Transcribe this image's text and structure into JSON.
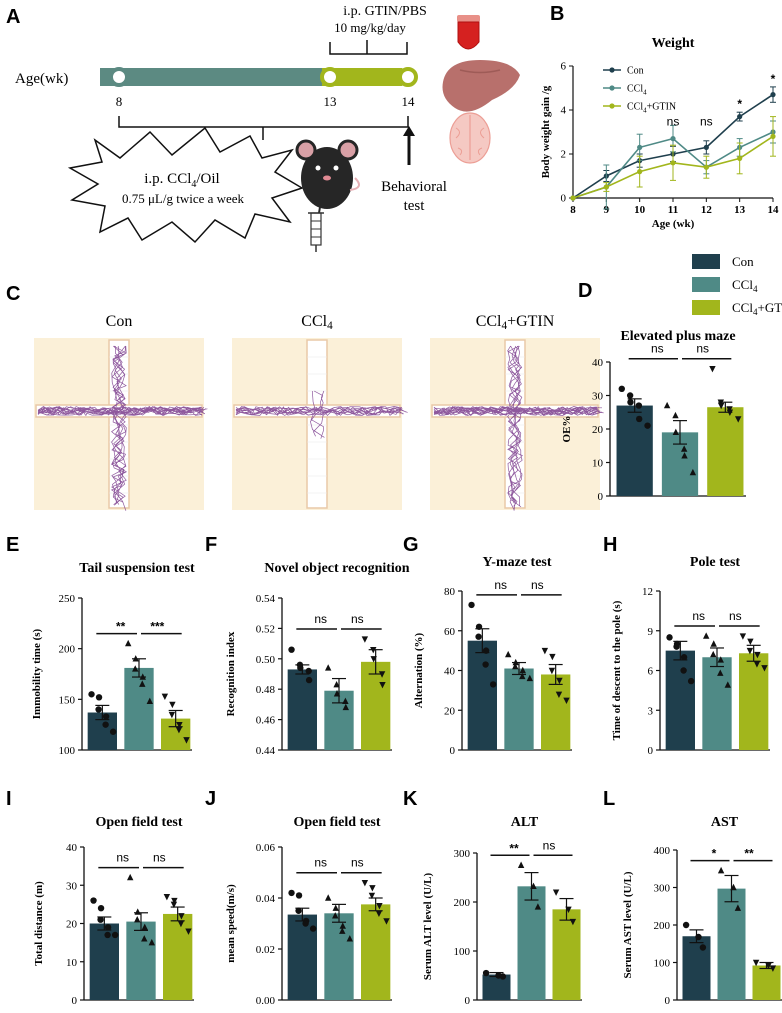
{
  "colors": {
    "con": "#1f3f4d",
    "ccl4": "#4f8a86",
    "gtin": "#a2b61c",
    "timeline_dark": "#5c8a82",
    "timeline_light": "#a2b61c",
    "maze_bg": "#fbf0d8",
    "maze_arm": "#e9c9a7",
    "track": "#7a3b8c"
  },
  "panel_letters": {
    "A": "A",
    "B": "B",
    "C": "C",
    "D": "D",
    "E": "E",
    "F": "F",
    "G": "G",
    "H": "H",
    "I": "I",
    "J": "J",
    "K": "K",
    "L": "L"
  },
  "panelA": {
    "axis_label": "Age(wk)",
    "ticks": [
      "8",
      "13",
      "14"
    ],
    "top_label": "i.p. GTIN/PBS",
    "top_dose": "10 mg/kg/day",
    "burst_line1": "i.p. CCl",
    "burst_sub": "4",
    "burst_line1_suffix": "/Oil",
    "burst_line2": "0.75 μL/g twice a week",
    "behav1": "Behavioral",
    "behav2": "test"
  },
  "legend": {
    "entries": [
      {
        "key": "con",
        "label": "Con",
        "sub": "",
        "suffix": ""
      },
      {
        "key": "ccl4",
        "label": "CCl",
        "sub": "4",
        "suffix": ""
      },
      {
        "key": "gtin",
        "label": "CCl",
        "sub": "4",
        "suffix": "+GTIN"
      }
    ]
  },
  "panelC": {
    "titles": [
      {
        "main": "Con",
        "sub": "",
        "suffix": ""
      },
      {
        "main": "CCl",
        "sub": "4",
        "suffix": ""
      },
      {
        "main": "CCl",
        "sub": "4",
        "suffix": "+GTIN"
      }
    ]
  },
  "chart_data": [
    {
      "id": "B",
      "type": "line",
      "title": "Weight",
      "xlabel": "Age (wk)",
      "ylabel": "Body weight gain /g",
      "x": [
        8,
        9,
        10,
        11,
        12,
        13,
        14
      ],
      "xlim": [
        8,
        14
      ],
      "ylim": [
        0,
        6
      ],
      "yticks": [
        0,
        2,
        4,
        6
      ],
      "series": [
        {
          "name": "Con",
          "color_key": "con",
          "values": [
            0,
            1.0,
            1.7,
            2.0,
            2.3,
            3.7,
            4.7
          ],
          "err": [
            0,
            0.25,
            0.3,
            0.35,
            0.3,
            0.2,
            0.35
          ]
        },
        {
          "name": "CCl4",
          "color_key": "ccl4",
          "values": [
            0,
            0.5,
            2.3,
            2.7,
            1.4,
            2.3,
            3.0
          ],
          "err": [
            0,
            1.0,
            0.6,
            0.6,
            0.3,
            0.4,
            0.5
          ]
        },
        {
          "name": "CCl4+GTIN",
          "color_key": "gtin",
          "values": [
            0,
            0.5,
            1.2,
            1.6,
            1.4,
            1.8,
            2.8
          ],
          "err": [
            0,
            0.2,
            0.7,
            0.8,
            0.5,
            0.7,
            0.9
          ]
        }
      ],
      "legend": [
        {
          "label": "Con",
          "sub": "",
          "suffix": ""
        },
        {
          "label": "CCl",
          "sub": "4",
          "suffix": ""
        },
        {
          "label": "CCl",
          "sub": "4",
          "suffix": "+GTIN"
        }
      ],
      "annotations": [
        {
          "x": 11,
          "text": "ns"
        },
        {
          "x": 12,
          "text": "ns"
        },
        {
          "x": 13,
          "text": "*"
        },
        {
          "x": 14,
          "text": "*"
        }
      ]
    },
    {
      "id": "D",
      "type": "bar",
      "title": "Elevated plus maze",
      "ylabel": "OE%",
      "ylim": [
        0,
        40
      ],
      "yticks": [
        0,
        10,
        20,
        30,
        40
      ],
      "values": [
        27,
        19,
        26.5
      ],
      "err": [
        2,
        3.5,
        1.5
      ],
      "points": [
        [
          32,
          30,
          28,
          27,
          23,
          21
        ],
        [
          27,
          24,
          19,
          14,
          12,
          7
        ],
        [
          38,
          28,
          27,
          26,
          25,
          23
        ]
      ],
      "sig": [
        {
          "from": 0,
          "to": 1,
          "text": "ns",
          "level": 0
        },
        {
          "from": 1,
          "to": 2,
          "text": "ns",
          "level": 0
        }
      ]
    },
    {
      "id": "E",
      "type": "bar",
      "title": "Tail suspension test",
      "ylabel": "Immobility time (s)",
      "ylim": [
        100,
        250
      ],
      "yticks": [
        100,
        150,
        200,
        250
      ],
      "values": [
        137,
        181,
        131
      ],
      "err": [
        7,
        9,
        8
      ],
      "points": [
        [
          155,
          152,
          140,
          133,
          125,
          118
        ],
        [
          205,
          190,
          180,
          172,
          165,
          148
        ],
        [
          153,
          145,
          135,
          125,
          120,
          110
        ]
      ],
      "sig": [
        {
          "from": 0,
          "to": 1,
          "text": "**",
          "level": 0
        },
        {
          "from": 1,
          "to": 2,
          "text": "***",
          "level": 0
        }
      ]
    },
    {
      "id": "F",
      "type": "bar",
      "title": "Novel object recognition",
      "ylabel": "Recognition index",
      "ylim": [
        0.44,
        0.54
      ],
      "yticks": [
        0.44,
        0.46,
        0.48,
        0.5,
        0.52,
        0.54
      ],
      "values": [
        0.493,
        0.479,
        0.498
      ],
      "err": [
        0.003,
        0.008,
        0.008
      ],
      "points": [
        [
          0.506,
          0.496,
          0.494,
          0.492,
          0.486
        ],
        [
          0.494,
          0.483,
          0.477,
          0.472,
          0.468
        ],
        [
          0.513,
          0.506,
          0.5,
          0.49,
          0.483
        ]
      ],
      "sig": [
        {
          "from": 0,
          "to": 1,
          "text": "ns",
          "level": 0
        },
        {
          "from": 1,
          "to": 2,
          "text": "ns",
          "level": 0
        }
      ]
    },
    {
      "id": "G",
      "type": "bar",
      "title": "Y-maze test",
      "ylabel": "Alternation (%)",
      "ylim": [
        0,
        80
      ],
      "yticks": [
        0,
        20,
        40,
        60,
        80
      ],
      "values": [
        55,
        41,
        38
      ],
      "err": [
        6,
        3,
        5
      ],
      "points": [
        [
          73,
          62,
          57,
          50,
          43,
          33
        ],
        [
          48,
          44,
          42,
          40,
          37,
          36
        ],
        [
          50,
          47,
          40,
          35,
          28,
          25
        ]
      ],
      "sig": [
        {
          "from": 0,
          "to": 1,
          "text": "ns",
          "level": 0
        },
        {
          "from": 1,
          "to": 2,
          "text": "ns",
          "level": 0
        }
      ]
    },
    {
      "id": "H",
      "type": "bar",
      "title": "Pole test",
      "ylabel": "Time of descent to the pole (s)",
      "ylim": [
        0,
        12
      ],
      "yticks": [
        0,
        3,
        6,
        9,
        12
      ],
      "values": [
        7.5,
        7.0,
        7.3
      ],
      "err": [
        0.7,
        0.7,
        0.6
      ],
      "points": [
        [
          8.5,
          8.0,
          7.8,
          7.0,
          6.0,
          5.2
        ],
        [
          8.6,
          8.0,
          7.2,
          6.8,
          5.8,
          4.9
        ],
        [
          8.6,
          8.2,
          7.5,
          7.2,
          6.5,
          6.2
        ]
      ],
      "sig": [
        {
          "from": 0,
          "to": 1,
          "text": "ns",
          "level": 0
        },
        {
          "from": 1,
          "to": 2,
          "text": "ns",
          "level": 0
        }
      ]
    },
    {
      "id": "I",
      "type": "bar",
      "title": "Open field test",
      "ylabel": "Total distance (m)",
      "ylim": [
        0,
        40
      ],
      "yticks": [
        0,
        10,
        20,
        30,
        40
      ],
      "values": [
        20,
        20.5,
        22.5
      ],
      "err": [
        1.7,
        2.3,
        1.8
      ],
      "points": [
        [
          26,
          24,
          21,
          19,
          17,
          17
        ],
        [
          32,
          23,
          21,
          19,
          16,
          15
        ],
        [
          27,
          26,
          25,
          22,
          20,
          18
        ]
      ],
      "sig": [
        {
          "from": 0,
          "to": 1,
          "text": "ns",
          "level": 0
        },
        {
          "from": 1,
          "to": 2,
          "text": "ns",
          "level": 0
        }
      ]
    },
    {
      "id": "J",
      "type": "bar",
      "title": "Open field test",
      "ylabel": "mean speed(m/s)",
      "ylim": [
        0,
        0.06
      ],
      "yticks": [
        0.0,
        0.02,
        0.04,
        0.06
      ],
      "values": [
        0.0335,
        0.034,
        0.0375
      ],
      "err": [
        0.0025,
        0.0035,
        0.0025
      ],
      "points": [
        [
          0.042,
          0.041,
          0.035,
          0.031,
          0.03,
          0.028
        ],
        [
          0.04,
          0.036,
          0.033,
          0.029,
          0.027,
          0.024
        ],
        [
          0.046,
          0.044,
          0.041,
          0.037,
          0.034,
          0.031
        ]
      ],
      "sig": [
        {
          "from": 0,
          "to": 1,
          "text": "ns",
          "level": 0
        },
        {
          "from": 1,
          "to": 2,
          "text": "ns",
          "level": 0
        }
      ]
    },
    {
      "id": "K",
      "type": "bar",
      "title": "ALT",
      "ylabel": "Serum ALT level (U/L)",
      "ylim": [
        0,
        300
      ],
      "yticks": [
        0,
        100,
        200,
        300
      ],
      "values": [
        52,
        232,
        185
      ],
      "err": [
        4,
        28,
        22
      ],
      "points": [
        [
          55,
          50,
          48
        ],
        [
          275,
          232,
          190
        ],
        [
          220,
          185,
          160
        ]
      ],
      "sig": [
        {
          "from": 0,
          "to": 1,
          "text": "**",
          "level": 0
        },
        {
          "from": 1,
          "to": 2,
          "text": "ns",
          "level": 0
        }
      ]
    },
    {
      "id": "L",
      "type": "bar",
      "title": "AST",
      "ylabel": "Serum AST level (U/L)",
      "ylim": [
        0,
        400
      ],
      "yticks": [
        0,
        100,
        200,
        300,
        400
      ],
      "values": [
        170,
        297,
        92
      ],
      "err": [
        17,
        35,
        8
      ],
      "points": [
        [
          200,
          168,
          140
        ],
        [
          345,
          300,
          245
        ],
        [
          100,
          92,
          85
        ]
      ],
      "sig": [
        {
          "from": 0,
          "to": 1,
          "text": "*",
          "level": 0
        },
        {
          "from": 1,
          "to": 2,
          "text": "**",
          "level": 0
        }
      ]
    }
  ]
}
